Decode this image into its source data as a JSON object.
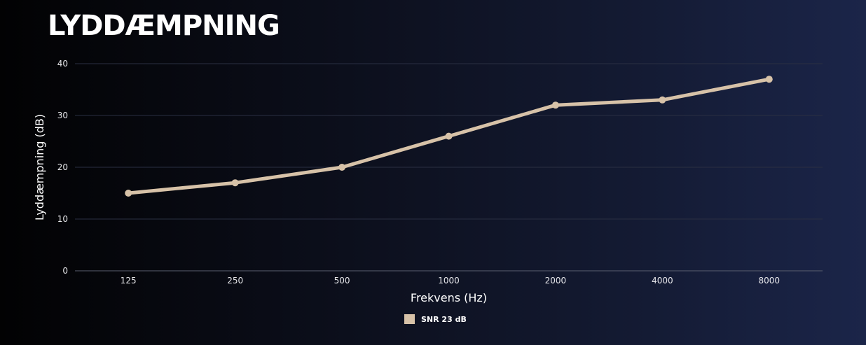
{
  "page": {
    "title": "LYDDÆMPNING"
  },
  "chart_data": {
    "type": "line",
    "title": "LYDDÆMPNING",
    "xlabel": "Frekvens (Hz)",
    "ylabel": "Lyddæmpning (dB)",
    "categories": [
      "125",
      "250",
      "500",
      "1000",
      "2000",
      "4000",
      "8000"
    ],
    "ylim": [
      0,
      40
    ],
    "yticks": [
      0,
      10,
      20,
      30,
      40
    ],
    "grid": true,
    "legend_position": "bottom",
    "series": [
      {
        "name": "SNR 23 dB",
        "color": "#d7c2a8",
        "values": [
          15,
          17,
          20,
          26,
          32,
          33,
          37
        ]
      }
    ]
  }
}
